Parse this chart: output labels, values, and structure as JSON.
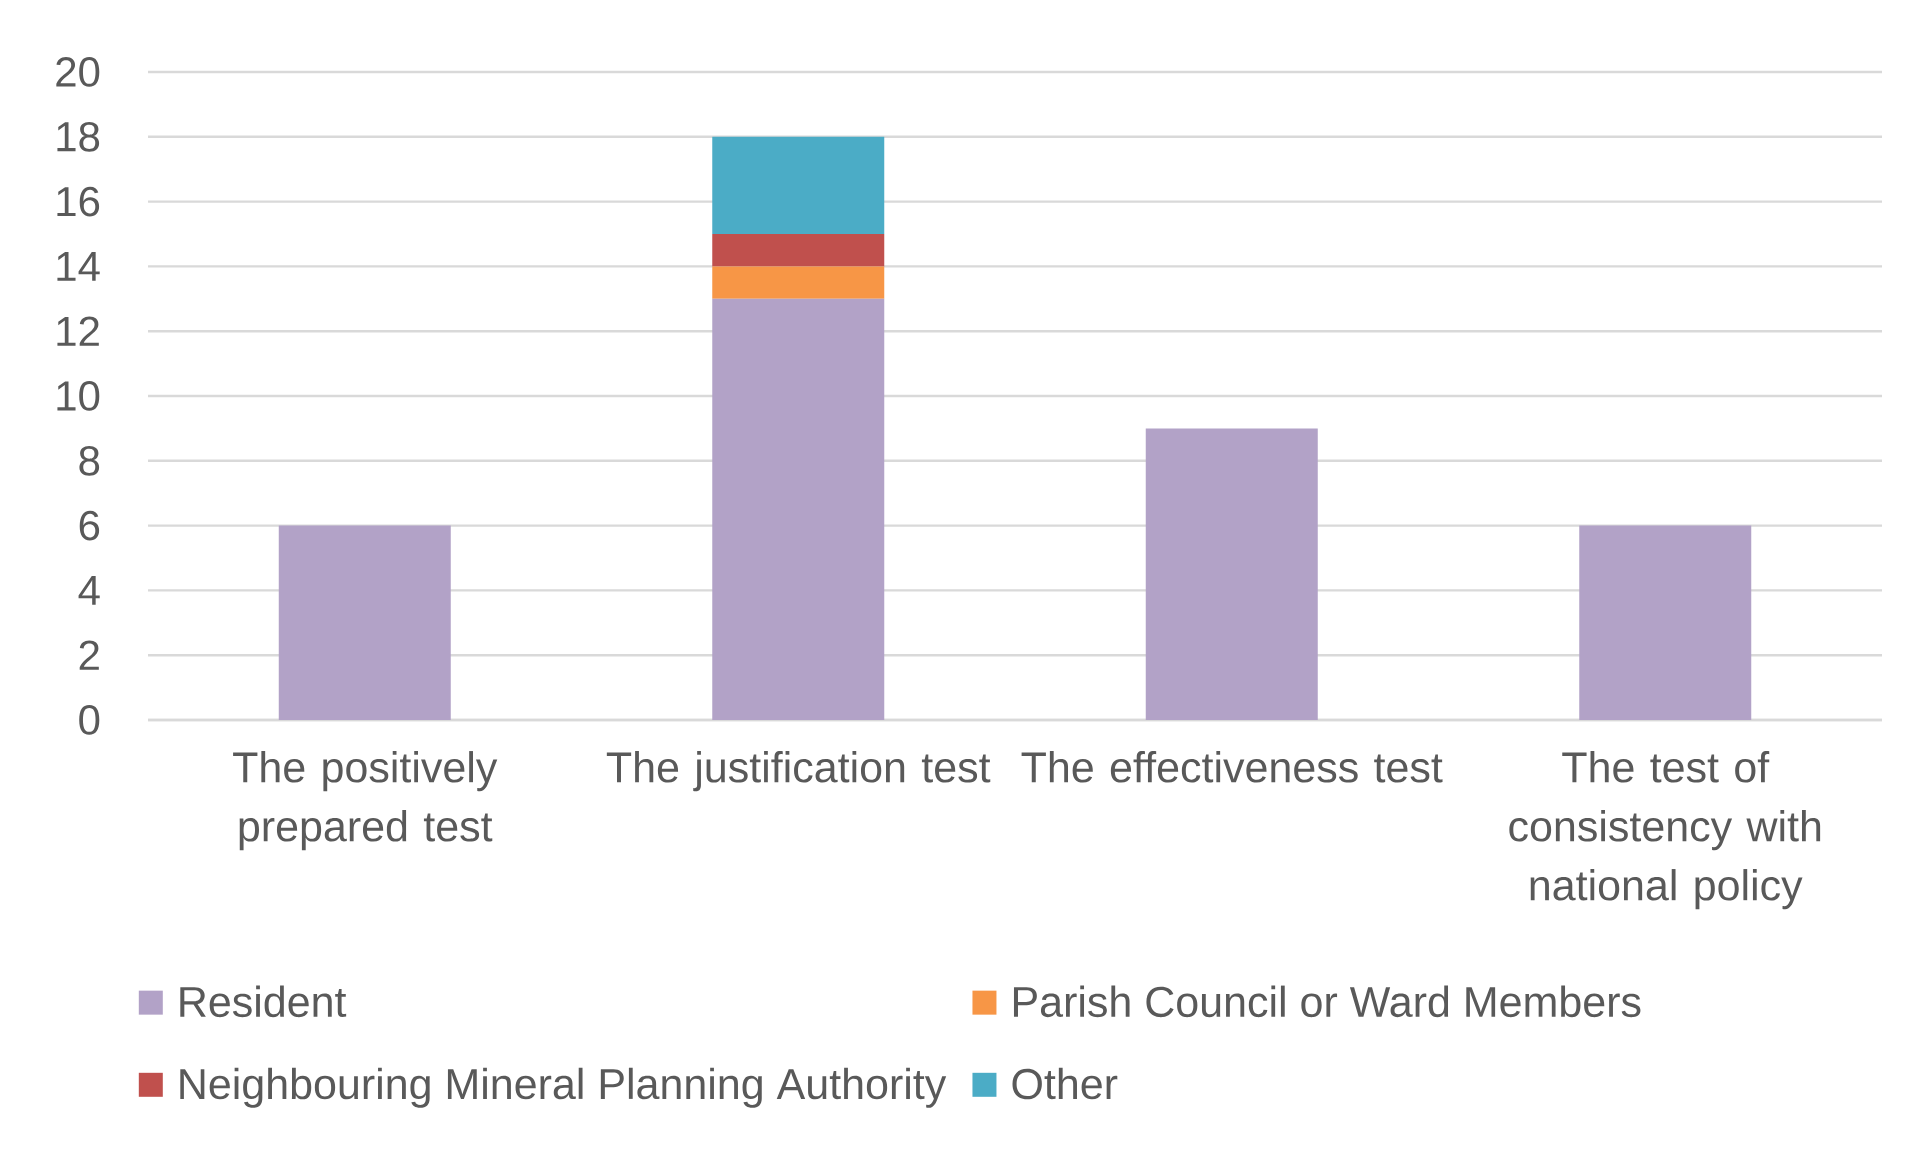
{
  "chart_data": {
    "type": "bar",
    "stacked": true,
    "categories": [
      "The positively prepared test",
      "The justification test",
      "The effectiveness test",
      "The test of consistency with national policy"
    ],
    "series": [
      {
        "name": "Resident",
        "color": "#b2a2c7",
        "values": [
          6,
          13,
          9,
          6
        ]
      },
      {
        "name": "Parish Council or Ward Members",
        "color": "#f79646",
        "values": [
          null,
          1,
          null,
          null
        ]
      },
      {
        "name": "Neighbouring Mineral Planning Authority",
        "color": "#c0504d",
        "values": [
          null,
          1,
          null,
          null
        ]
      },
      {
        "name": "Other",
        "color": "#4bacc6",
        "values": [
          null,
          3,
          null,
          null
        ]
      }
    ],
    "ylim": [
      0,
      20
    ],
    "yticks": [
      0,
      2,
      4,
      6,
      8,
      10,
      12,
      14,
      16,
      18,
      20
    ],
    "grid": "y",
    "legend": "bottom"
  }
}
